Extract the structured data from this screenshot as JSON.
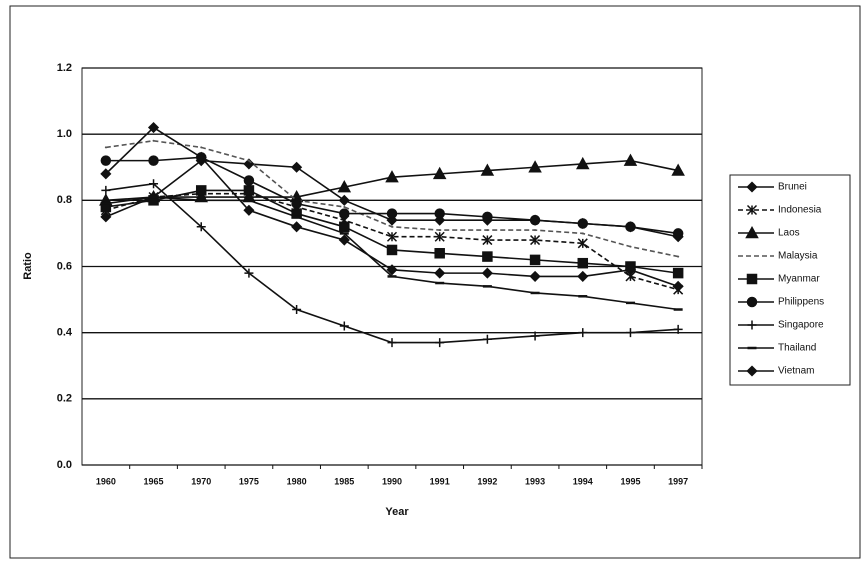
{
  "chart_data": {
    "type": "line",
    "x_label": "Year",
    "y_label": "Ratio",
    "categories": [
      "1960",
      "1965",
      "1970",
      "1975",
      "1980",
      "1985",
      "1990",
      "1991",
      "1992",
      "1993",
      "1994",
      "1995",
      "1997"
    ],
    "ylim": [
      0,
      1.2
    ],
    "yticks": [
      {
        "value": 0,
        "label": "0.0"
      },
      {
        "value": 0.2,
        "label": "0.2"
      },
      {
        "value": 0.4,
        "label": "0.4"
      },
      {
        "value": 0.6,
        "label": "0.6"
      },
      {
        "value": 0.8,
        "label": "0.8"
      },
      {
        "value": 1,
        "label": "1.0"
      },
      {
        "value": 1.2,
        "label": "1.2"
      }
    ],
    "grid": true,
    "legend": "right",
    "series": [
      {
        "name": "Brunei",
        "color": "#111111",
        "marker": "diamond",
        "dash": "solid",
        "values": [
          0.75,
          0.81,
          0.92,
          0.91,
          0.9,
          0.8,
          0.74,
          0.74,
          0.74,
          0.74,
          0.73,
          0.72,
          0.69
        ]
      },
      {
        "name": "Indonesia",
        "color": "#111111",
        "marker": "x",
        "dash": "dashed",
        "values": [
          0.77,
          0.81,
          0.82,
          0.82,
          0.78,
          0.74,
          0.69,
          0.69,
          0.68,
          0.68,
          0.67,
          0.57,
          0.53
        ]
      },
      {
        "name": "Laos",
        "color": "#111111",
        "marker": "triangle",
        "dash": "solid",
        "values": [
          0.8,
          0.81,
          0.81,
          0.81,
          0.81,
          0.84,
          0.87,
          0.88,
          0.89,
          0.9,
          0.91,
          0.92,
          0.89
        ]
      },
      {
        "name": "Malaysia",
        "color": "#555555",
        "marker": "none",
        "dash": "dashed",
        "values": [
          0.96,
          0.98,
          0.96,
          0.92,
          0.8,
          0.78,
          0.72,
          0.71,
          0.71,
          0.71,
          0.7,
          0.66,
          0.63
        ]
      },
      {
        "name": "Myanmar",
        "color": "#111111",
        "marker": "square",
        "dash": "solid",
        "values": [
          0.78,
          0.8,
          0.83,
          0.83,
          0.76,
          0.72,
          0.65,
          0.64,
          0.63,
          0.62,
          0.61,
          0.6,
          0.58
        ]
      },
      {
        "name": "Philippens",
        "color": "#111111",
        "marker": "circle",
        "dash": "solid",
        "values": [
          0.92,
          0.92,
          0.93,
          0.86,
          0.79,
          0.76,
          0.76,
          0.76,
          0.75,
          0.74,
          0.73,
          0.72,
          0.7
        ]
      },
      {
        "name": "Singapore",
        "color": "#111111",
        "marker": "plus",
        "dash": "solid",
        "values": [
          0.83,
          0.85,
          0.72,
          0.58,
          0.47,
          0.42,
          0.37,
          0.37,
          0.38,
          0.39,
          0.4,
          0.4,
          0.41
        ]
      },
      {
        "name": "Thailand",
        "color": "#111111",
        "marker": "dash",
        "dash": "solid",
        "values": [
          0.79,
          0.81,
          0.8,
          0.8,
          0.75,
          0.7,
          0.57,
          0.55,
          0.54,
          0.52,
          0.51,
          0.49,
          0.47
        ]
      },
      {
        "name": "Vietnam",
        "color": "#111111",
        "marker": "diamond",
        "dash": "solid",
        "values": [
          0.88,
          1.02,
          0.93,
          0.77,
          0.72,
          0.68,
          0.59,
          0.58,
          0.58,
          0.57,
          0.57,
          0.59,
          0.54
        ]
      }
    ]
  }
}
